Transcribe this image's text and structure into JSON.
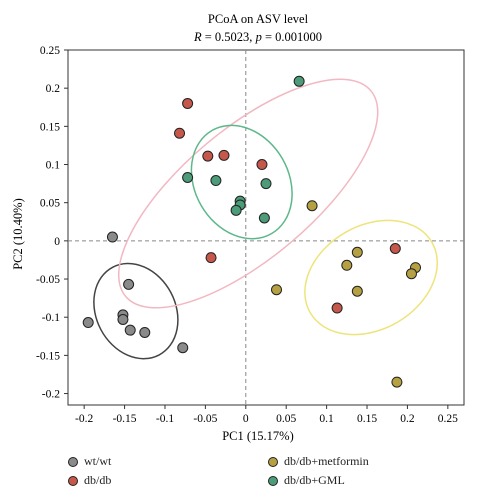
{
  "chart_data": {
    "type": "scatter",
    "title": "PCoA on ASV level",
    "subtitle": "R = 0.5023, p = 0.001000",
    "subtitle_parts": {
      "r_symbol": "R",
      "r_text": " = 0.5023, ",
      "p_symbol": "p",
      "p_text": " = 0.001000"
    },
    "xlabel": "PC1 (15.17%)",
    "ylabel": "PC2 (10.40%)",
    "xlim": [
      -0.22,
      0.27
    ],
    "ylim": [
      -0.215,
      0.25
    ],
    "xticks": [
      -0.2,
      -0.15,
      -0.1,
      -0.05,
      0,
      0.05,
      0.1,
      0.15,
      0.2,
      0.25
    ],
    "xtick_labels": [
      "-0.2",
      "-0.15",
      "-0.1",
      "-0.05",
      "0",
      "0.05",
      "0.1",
      "0.15",
      "0.2",
      "0.25"
    ],
    "yticks": [
      0.25,
      0.2,
      0.15,
      0.1,
      0.05,
      0,
      -0.05,
      -0.1,
      -0.15,
      -0.2
    ],
    "ytick_labels": [
      "0.25",
      "0.2",
      "0.15",
      "0.1",
      "0.05",
      "0",
      "-0.05",
      "-0.1",
      "-0.15",
      "-0.2"
    ],
    "reference_lines": {
      "x": 0,
      "y": 0,
      "style": "dashed"
    },
    "grid": false,
    "legend_position": "bottom",
    "series": [
      {
        "name": "wt/wt",
        "color": "#8a8a8a",
        "ellipse_color": "#444444",
        "points": [
          [
            -0.165,
            0.005
          ],
          [
            -0.195,
            -0.107
          ],
          [
            -0.145,
            -0.057
          ],
          [
            -0.152,
            -0.097
          ],
          [
            -0.152,
            -0.103
          ],
          [
            -0.143,
            -0.117
          ],
          [
            -0.125,
            -0.12
          ],
          [
            -0.078,
            -0.14
          ]
        ],
        "ellipse": {
          "cx": -0.136,
          "cy": -0.092,
          "rx": 0.049,
          "ry": 0.065,
          "angle_deg": -28
        }
      },
      {
        "name": "db/db",
        "color": "#c6574b",
        "ellipse_color": "#f2b8c2",
        "points": [
          [
            -0.072,
            0.18
          ],
          [
            -0.082,
            0.141
          ],
          [
            -0.047,
            0.111
          ],
          [
            -0.027,
            0.112
          ],
          [
            0.02,
            0.1
          ],
          [
            -0.043,
            -0.022
          ],
          [
            0.185,
            -0.01
          ],
          [
            0.113,
            -0.088
          ]
        ],
        "ellipse": {
          "cx": 0.003,
          "cy": 0.062,
          "rx": 0.198,
          "ry": 0.085,
          "angle_deg": -40
        }
      },
      {
        "name": "db/db+metformin",
        "color": "#b5a142",
        "ellipse_color": "#ede47c",
        "points": [
          [
            0.082,
            0.046
          ],
          [
            0.138,
            -0.015
          ],
          [
            0.125,
            -0.032
          ],
          [
            0.038,
            -0.064
          ],
          [
            0.138,
            -0.066
          ],
          [
            0.21,
            -0.035
          ],
          [
            0.205,
            -0.043
          ],
          [
            0.187,
            -0.185
          ]
        ],
        "ellipse": {
          "cx": 0.155,
          "cy": -0.048,
          "rx": 0.087,
          "ry": 0.068,
          "angle_deg": -30
        }
      },
      {
        "name": "db/db+GML",
        "color": "#4c9c7a",
        "ellipse_color": "#5cb88a",
        "points": [
          [
            0.066,
            0.209
          ],
          [
            -0.072,
            0.083
          ],
          [
            -0.037,
            0.079
          ],
          [
            0.025,
            0.075
          ],
          [
            -0.007,
            0.052
          ],
          [
            -0.007,
            0.047
          ],
          [
            -0.012,
            0.04
          ],
          [
            0.023,
            0.03
          ]
        ],
        "ellipse": {
          "cx": -0.005,
          "cy": 0.077,
          "rx": 0.058,
          "ry": 0.078,
          "angle_deg": -30
        }
      }
    ]
  },
  "legend": {
    "left": [
      {
        "label": "wt/wt",
        "color": "#8a8a8a"
      },
      {
        "label": "db/db",
        "color": "#c6574b"
      }
    ],
    "right": [
      {
        "label": "db/db+metformin",
        "color": "#b5a142"
      },
      {
        "label": "db/db+GML",
        "color": "#4c9c7a"
      }
    ]
  }
}
